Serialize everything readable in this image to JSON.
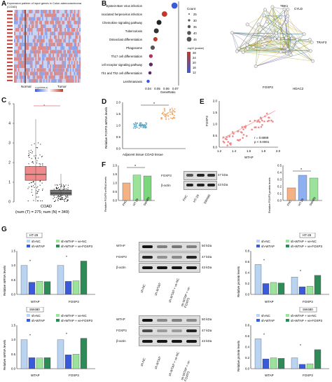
{
  "panel_labels": {
    "A": "A",
    "B": "B",
    "C": "C",
    "D": "D",
    "E": "E",
    "F": "F",
    "G": "G"
  },
  "colors": {
    "red": "#c0392b",
    "blue": "#3a5bd9",
    "lightblue": "#b9d3f0",
    "green": "#2e8b57",
    "lightgreen": "#9be39b",
    "orange": "#f4b183",
    "pink": "#f08a8a",
    "purple": "#6a5acd"
  },
  "panelA": {
    "title": "Expression pattern of input genes in Colon adenocarcinoma (COAD)",
    "group_normal": "Normal",
    "group_tumor": "Tumor",
    "scale_label": "Log2(TPM+1)"
  },
  "panelB": {
    "chart_data": {
      "type": "scatter",
      "categories": [
        "Epstein-Barr virus infection",
        "Kaposi sarcoma-associated herpesvirus infection",
        "Chemokine signaling pathway",
        "Tuberculosis",
        "Osteoclast differentiation",
        "Phagosome",
        "Th17 cell differentiation",
        "T cell receptor signaling pathway",
        "Th1 and Th2 cell differentiation",
        "Leishmaniasis"
      ],
      "x": [
        0.069,
        0.058,
        0.052,
        0.049,
        0.048,
        0.045,
        0.043,
        0.043,
        0.042,
        0.04
      ],
      "sizes": [
        40,
        35,
        30,
        30,
        25,
        25,
        20,
        20,
        15,
        15
      ],
      "xlabel": "GeneRatio",
      "xticks": [
        "0.04",
        "0.05",
        "0.06",
        "0.07"
      ],
      "xlim": [
        0.035,
        0.072
      ]
    },
    "legend_count_title": "Count",
    "count_values": [
      "25",
      "30",
      "35",
      "40",
      "45"
    ],
    "legend_p_title": "-log10 (pvalue)",
    "p_values": [
      "28",
      "24",
      "20",
      "16",
      "12"
    ]
  },
  "network": {
    "labels": [
      "TBK1",
      "CYLD",
      "TRAF3",
      "FOXP3",
      "HDAC2"
    ]
  },
  "panelC": {
    "chart_data": {
      "type": "box",
      "categories": [
        "COAD"
      ],
      "series": [
        {
          "name": "T",
          "median": 1.4,
          "q1": 1.1,
          "q3": 1.8
        },
        {
          "name": "N",
          "median": 0.45,
          "q1": 0.35,
          "q3": 0.6
        }
      ],
      "ylim": [
        0,
        5
      ],
      "yticks": [
        "0",
        "1",
        "2",
        "3",
        "4",
        "5"
      ]
    },
    "star": "*",
    "xcat": "COAD",
    "counts": "(num (T) = 275; num (N) = 349)"
  },
  "panelD": {
    "chart_data": {
      "type": "scatter",
      "categories": [
        "Adjacent tissue",
        "COAD tissue"
      ],
      "means": [
        1.0,
        1.5
      ],
      "ylim": [
        0,
        2.0
      ],
      "yticks": [
        "0.0",
        "0.5",
        "1.0",
        "1.5",
        "2.0"
      ],
      "ylabel": "Relative FOXP3 mRNA levels"
    },
    "star": "*",
    "xlabel": "Adjacent tissue  COAD tissue"
  },
  "panelE": {
    "chart_data": {
      "type": "scatter",
      "xlabel": "WTAP",
      "ylabel": "FOXP3",
      "xlim": [
        1.2,
        2.0
      ],
      "ylim": [
        0.0,
        2.0
      ],
      "xticks": [
        "1.2",
        "1.4",
        "1.6",
        "1.8",
        "2.0"
      ],
      "yticks": [
        "0.0",
        "0.5",
        "1.0",
        "1.5",
        "2.0"
      ]
    },
    "r": "r = 0.6869",
    "p": "p < 0.0001"
  },
  "panelF": {
    "mrna": {
      "type": "bar",
      "categories": [
        "FHC",
        "HT-29",
        "SW480"
      ],
      "values": [
        1.0,
        1.45,
        1.4
      ],
      "ylabel": "Relative FOXP3 mRNA levels",
      "yticks": [
        "0.0",
        "0.5",
        "1.0",
        "1.5",
        "2.0"
      ],
      "ylim": [
        0,
        2.0
      ]
    },
    "blot_labels": [
      "FOXP3",
      "β-actin"
    ],
    "blot_kda": [
      "47 kDa",
      "43 kDa"
    ],
    "lanes": [
      "FHC",
      "HT-29",
      "SW480"
    ],
    "protein": {
      "type": "bar",
      "categories": [
        "FHC",
        "HT-29",
        "SW480"
      ],
      "values": [
        0.18,
        0.36,
        0.32
      ],
      "ylabel": "Relative FOXP3 protein levels",
      "yticks": [
        "0.0",
        "0.1",
        "0.2",
        "0.3",
        "0.4",
        "0.5"
      ],
      "ylim": [
        0,
        0.5
      ]
    },
    "star": "*"
  },
  "panelG": {
    "legend": [
      "sh-NC",
      "sh-WTAP",
      "sh-WTAP + ve-NC",
      "sh-WTAP + ve-FOXP3"
    ],
    "cell_ht": "HT-29",
    "cell_sw": "SW480",
    "mrna_ylabel": "Relative mRNA levels",
    "prot_ylabel": "Relative protein levels",
    "groups": [
      "WTAP",
      "FOXP3"
    ],
    "ht_mrna": {
      "type": "bar",
      "series": [
        {
          "name": "sh-NC",
          "values": [
            1.0,
            1.0
          ]
        },
        {
          "name": "sh-WTAP",
          "values": [
            0.42,
            0.45
          ]
        },
        {
          "name": "sh-WTAP + ve-NC",
          "values": [
            0.45,
            0.47
          ]
        },
        {
          "name": "sh-WTAP + ve-FOXP3",
          "values": [
            0.44,
            1.15
          ]
        }
      ],
      "ylim": [
        0,
        1.5
      ],
      "yticks": [
        "0.0",
        "0.5",
        "1.0",
        "1.5"
      ]
    },
    "ht_prot": {
      "type": "bar",
      "series": [
        {
          "name": "sh-NC",
          "values": [
            0.55,
            0.32
          ]
        },
        {
          "name": "sh-WTAP",
          "values": [
            0.2,
            0.14
          ]
        },
        {
          "name": "sh-WTAP + ve-NC",
          "values": [
            0.22,
            0.15
          ]
        },
        {
          "name": "sh-WTAP + ve-FOXP3",
          "values": [
            0.21,
            0.35
          ]
        }
      ],
      "ylim": [
        0,
        0.8
      ],
      "yticks": [
        "0.0",
        "0.2",
        "0.4",
        "0.6",
        "0.8"
      ]
    },
    "sw_mrna": {
      "type": "bar",
      "series": [
        {
          "name": "sh-NC",
          "values": [
            1.0,
            1.0
          ]
        },
        {
          "name": "sh-WTAP",
          "values": [
            0.38,
            0.48
          ]
        },
        {
          "name": "sh-WTAP + ve-NC",
          "values": [
            0.37,
            0.5
          ]
        },
        {
          "name": "sh-WTAP + ve-FOXP3",
          "values": [
            0.38,
            1.05
          ]
        }
      ],
      "ylim": [
        0,
        1.5
      ],
      "yticks": [
        "0.0",
        "0.5",
        "1.0",
        "1.5"
      ]
    },
    "sw_prot": {
      "type": "bar",
      "series": [
        {
          "name": "sh-NC",
          "values": [
            0.55,
            0.2
          ]
        },
        {
          "name": "sh-WTAP",
          "values": [
            0.18,
            0.08
          ]
        },
        {
          "name": "sh-WTAP + ve-NC",
          "values": [
            0.2,
            0.09
          ]
        },
        {
          "name": "sh-WTAP + ve-FOXP3",
          "values": [
            0.19,
            0.35
          ]
        }
      ],
      "ylim": [
        0,
        0.8
      ],
      "yticks": [
        "0.0",
        "0.2",
        "0.4",
        "0.6",
        "0.8"
      ]
    },
    "blot_top": [
      "WTAP",
      "FOXP3",
      "β-actin"
    ],
    "blot_top_kda": [
      "50 kDa",
      "47 kDa",
      "43 kDa"
    ],
    "lanes": [
      "sh-NC",
      "sh-WTAP",
      "sh-WTAP + ve-NC",
      "sh-WTAP + ve-FOXP3"
    ],
    "star": "*"
  }
}
